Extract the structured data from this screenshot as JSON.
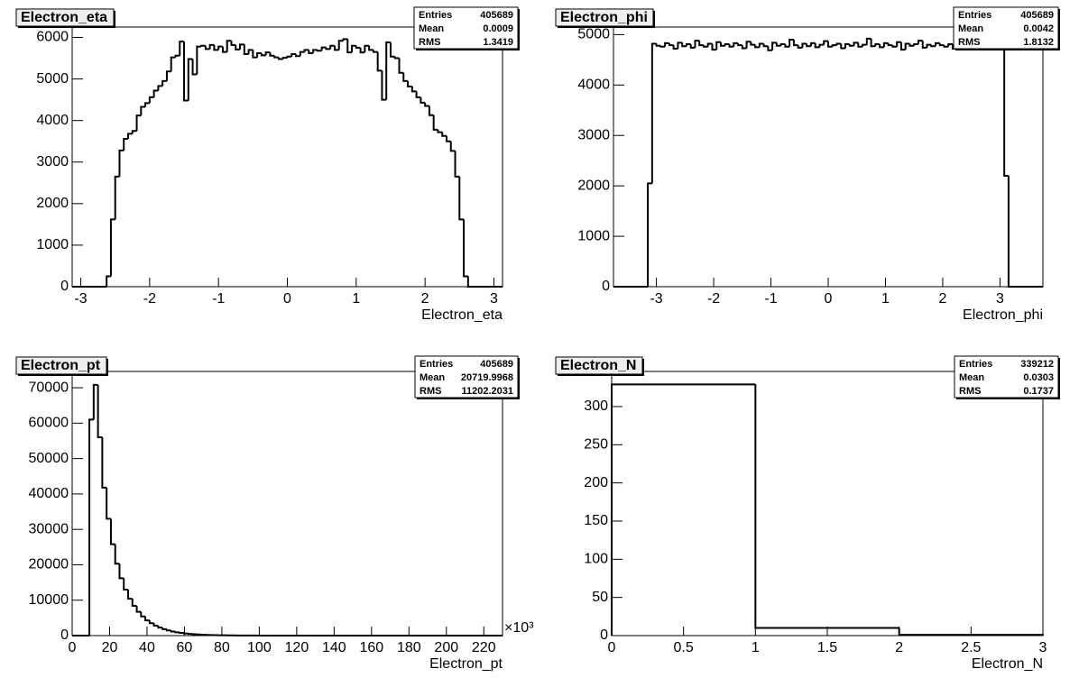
{
  "chart_data": [
    {
      "type": "histogram",
      "title": "Electron_eta",
      "xlabel": "Electron_eta",
      "color": "#000000",
      "xlim": [
        -3.125,
        3.125
      ],
      "ylim": [
        0,
        6250
      ],
      "xticks": [
        -3,
        -2,
        -1,
        0,
        1,
        2,
        3
      ],
      "yticks": [
        0,
        1000,
        2000,
        3000,
        4000,
        5000,
        6000
      ],
      "bins": [
        -3.125,
        -3.0625,
        -3,
        -2.9375,
        -2.875,
        -2.8125,
        -2.75,
        -2.6875,
        -2.625,
        -2.5625,
        -2.5,
        -2.4375,
        -2.375,
        -2.3125,
        -2.25,
        -2.1875,
        -2.125,
        -2.0625,
        -2,
        -1.9375,
        -1.875,
        -1.8125,
        -1.75,
        -1.6875,
        -1.625,
        -1.5625,
        -1.5,
        -1.4375,
        -1.375,
        -1.3125,
        -1.25,
        -1.1875,
        -1.125,
        -1.0625,
        -1,
        -0.9375,
        -0.875,
        -0.8125,
        -0.75,
        -0.6875,
        -0.625,
        -0.5625,
        -0.5,
        -0.4375,
        -0.375,
        -0.3125,
        -0.25,
        -0.1875,
        -0.125,
        -0.0625,
        0,
        0.0625,
        0.125,
        0.1875,
        0.25,
        0.3125,
        0.375,
        0.4375,
        0.5,
        0.5625,
        0.625,
        0.6875,
        0.75,
        0.8125,
        0.875,
        0.9375,
        1,
        1.0625,
        1.125,
        1.1875,
        1.25,
        1.3125,
        1.375,
        1.4375,
        1.5,
        1.5625,
        1.625,
        1.6875,
        1.75,
        1.8125,
        1.875,
        1.9375,
        2,
        2.0625,
        2.125,
        2.1875,
        2.25,
        2.3125,
        2.375,
        2.4375,
        2.5,
        2.5625,
        2.625,
        2.6875,
        2.75,
        2.8125,
        2.875,
        2.9375,
        3,
        3.0625,
        3.125
      ],
      "values": [
        0,
        0,
        0,
        0,
        0,
        0,
        0,
        0,
        250,
        1620,
        2650,
        3280,
        3560,
        3680,
        3750,
        4120,
        4330,
        4420,
        4560,
        4720,
        4830,
        4950,
        5180,
        5520,
        5560,
        5900,
        4480,
        5480,
        5110,
        5780,
        5800,
        5720,
        5820,
        5700,
        5780,
        5650,
        5920,
        5820,
        5710,
        5830,
        5600,
        5700,
        5520,
        5620,
        5570,
        5640,
        5560,
        5520,
        5480,
        5510,
        5540,
        5600,
        5550,
        5650,
        5700,
        5620,
        5700,
        5680,
        5760,
        5720,
        5800,
        5700,
        5920,
        5960,
        5640,
        5800,
        5750,
        5640,
        5800,
        5700,
        5650,
        5200,
        4500,
        5880,
        5540,
        5500,
        5150,
        4950,
        4820,
        4700,
        4560,
        4430,
        4350,
        4130,
        3780,
        3720,
        3630,
        3500,
        3270,
        2650,
        1620,
        250,
        0,
        0,
        0,
        0,
        0,
        0,
        0,
        0
      ],
      "stats": [
        {
          "label": "Entries",
          "value": "405689"
        },
        {
          "label": "Mean",
          "value": "0.0009"
        },
        {
          "label": "RMS",
          "value": "1.3419"
        }
      ]
    },
    {
      "type": "histogram",
      "title": "Electron_phi",
      "xlabel": "Electron_phi",
      "color": "#000000",
      "xlim": [
        -3.75,
        3.75
      ],
      "ylim": [
        0,
        5150
      ],
      "xticks": [
        -3,
        -2,
        -1,
        0,
        1,
        2,
        3
      ],
      "yticks": [
        0,
        1000,
        2000,
        3000,
        4000,
        5000
      ],
      "bins": [
        -3.75,
        -3.675,
        -3.6,
        -3.525,
        -3.45,
        -3.375,
        -3.3,
        -3.225,
        -3.15,
        -3.075,
        -3,
        -2.925,
        -2.85,
        -2.775,
        -2.7,
        -2.625,
        -2.55,
        -2.475,
        -2.4,
        -2.325,
        -2.25,
        -2.175,
        -2.1,
        -2.025,
        -1.95,
        -1.875,
        -1.8,
        -1.725,
        -1.65,
        -1.575,
        -1.5,
        -1.425,
        -1.35,
        -1.275,
        -1.2,
        -1.125,
        -1.05,
        -0.975,
        -0.9,
        -0.825,
        -0.75,
        -0.675,
        -0.6,
        -0.525,
        -0.45,
        -0.375,
        -0.3,
        -0.225,
        -0.15,
        -0.075,
        0,
        0.075,
        0.15,
        0.225,
        0.3,
        0.375,
        0.45,
        0.525,
        0.6,
        0.675,
        0.75,
        0.825,
        0.9,
        0.975,
        1.05,
        1.125,
        1.2,
        1.275,
        1.35,
        1.425,
        1.5,
        1.575,
        1.65,
        1.725,
        1.8,
        1.875,
        1.95,
        2.025,
        2.1,
        2.175,
        2.25,
        2.325,
        2.4,
        2.475,
        2.55,
        2.625,
        2.7,
        2.775,
        2.85,
        2.925,
        3,
        3.075,
        3.15,
        3.225,
        3.3,
        3.375,
        3.45,
        3.525,
        3.6,
        3.675,
        3.75
      ],
      "values": [
        0,
        0,
        0,
        0,
        0,
        0,
        0,
        0,
        2050,
        4820,
        4780,
        4760,
        4830,
        4790,
        4720,
        4840,
        4770,
        4810,
        4740,
        4880,
        4790,
        4760,
        4820,
        4700,
        4850,
        4780,
        4810,
        4760,
        4830,
        4790,
        4730,
        4860,
        4800,
        4750,
        4820,
        4770,
        4690,
        4840,
        4780,
        4810,
        4760,
        4900,
        4790,
        4740,
        4820,
        4770,
        4830,
        4750,
        4800,
        4870,
        4760,
        4790,
        4820,
        4730,
        4810,
        4780,
        4840,
        4760,
        4800,
        4920,
        4770,
        4810,
        4750,
        4830,
        4790,
        4760,
        4850,
        4700,
        4820,
        4780,
        4810,
        4880,
        4740,
        4800,
        4770,
        4830,
        4790,
        4760,
        4810,
        4720,
        4850,
        4780,
        4990,
        4800,
        4760,
        4830,
        4790,
        4820,
        4760,
        4940,
        4800,
        2200,
        0,
        0,
        0,
        0,
        0,
        0,
        0,
        0
      ],
      "stats": [
        {
          "label": "Entries",
          "value": "405689"
        },
        {
          "label": "Mean",
          "value": "0.0042"
        },
        {
          "label": "RMS",
          "value": "1.8132"
        }
      ]
    },
    {
      "type": "histogram",
      "title": "Electron_pt",
      "xlabel": "Electron_pt",
      "x_exponent": "×10³",
      "color": "#000000",
      "xlim": [
        0,
        230
      ],
      "ylim": [
        0,
        74600
      ],
      "xticks": [
        0,
        20,
        40,
        60,
        80,
        100,
        120,
        140,
        160,
        180,
        200,
        220
      ],
      "yticks": [
        0,
        10000,
        20000,
        30000,
        40000,
        50000,
        60000,
        70000
      ],
      "bins": [
        0,
        2.3,
        4.6,
        6.9,
        9.2,
        11.5,
        13.8,
        16.1,
        18.4,
        20.7,
        23,
        25.3,
        27.6,
        29.9,
        32.2,
        34.5,
        36.8,
        39.1,
        41.4,
        43.7,
        46,
        48.3,
        50.6,
        52.9,
        55.2,
        57.5,
        59.8,
        62.1,
        64.4,
        66.7,
        69,
        71.3,
        73.6,
        75.9,
        78.2,
        80.5,
        82.8,
        85.1,
        87.4,
        89.7,
        92,
        94.3,
        96.6,
        98.9,
        101.2,
        103.5,
        105.8,
        108.1,
        110.4,
        112.7,
        115,
        117.3,
        119.6,
        121.9,
        124.2,
        126.5,
        128.8,
        131.1,
        133.4,
        135.7,
        138,
        140.3,
        142.6,
        144.9,
        147.2,
        149.5,
        151.8,
        154.1,
        156.4,
        158.7,
        161,
        163.3,
        165.6,
        167.9,
        170.2,
        172.5,
        174.8,
        177.1,
        179.4,
        181.7,
        184,
        186.3,
        188.6,
        190.9,
        193.2,
        195.5,
        197.8,
        200.1,
        202.4,
        204.7,
        207,
        209.3,
        211.6,
        213.9,
        216.2,
        218.5,
        220.8,
        223.1,
        225.4,
        227.7,
        230
      ],
      "values": [
        0,
        0,
        0,
        0,
        61000,
        70800,
        56000,
        41800,
        33000,
        25800,
        20300,
        16200,
        13000,
        10400,
        8400,
        6700,
        5400,
        4300,
        3500,
        2800,
        2250,
        1800,
        1450,
        1150,
        930,
        750,
        600,
        480,
        390,
        310,
        250,
        200,
        160,
        130,
        105,
        85,
        70,
        55,
        45,
        37,
        30,
        24,
        19,
        15,
        12,
        10,
        8,
        6,
        5,
        4,
        3,
        3,
        2,
        2,
        1,
        0,
        0,
        0,
        0,
        0,
        0,
        0,
        0,
        0,
        0,
        0,
        0,
        0,
        0,
        0,
        0,
        0,
        0,
        0,
        0,
        0,
        0,
        0,
        0,
        0,
        0,
        0,
        0,
        0,
        0,
        0,
        0,
        0,
        0,
        0,
        0,
        0,
        0,
        0,
        0,
        0,
        0,
        0,
        0,
        0
      ],
      "stats": [
        {
          "label": "Entries",
          "value": "405689"
        },
        {
          "label": "Mean",
          "value": "20719.9968"
        },
        {
          "label": "RMS",
          "value": "11202.2031"
        }
      ]
    },
    {
      "type": "histogram",
      "title": "Electron_N",
      "xlabel": "Electron_N",
      "color": "#000000",
      "xlim": [
        0,
        3
      ],
      "ylim": [
        0,
        346
      ],
      "xticks": [
        0,
        0.5,
        1,
        1.5,
        2,
        2.5,
        3
      ],
      "yticks": [
        0,
        50,
        100,
        150,
        200,
        250,
        300
      ],
      "bins": [
        0,
        1,
        2,
        3
      ],
      "values": [
        329,
        10,
        1
      ],
      "stats": [
        {
          "label": "Entries",
          "value": "339212"
        },
        {
          "label": "Mean",
          "value": "0.0303"
        },
        {
          "label": "RMS",
          "value": "0.1737"
        }
      ]
    }
  ]
}
